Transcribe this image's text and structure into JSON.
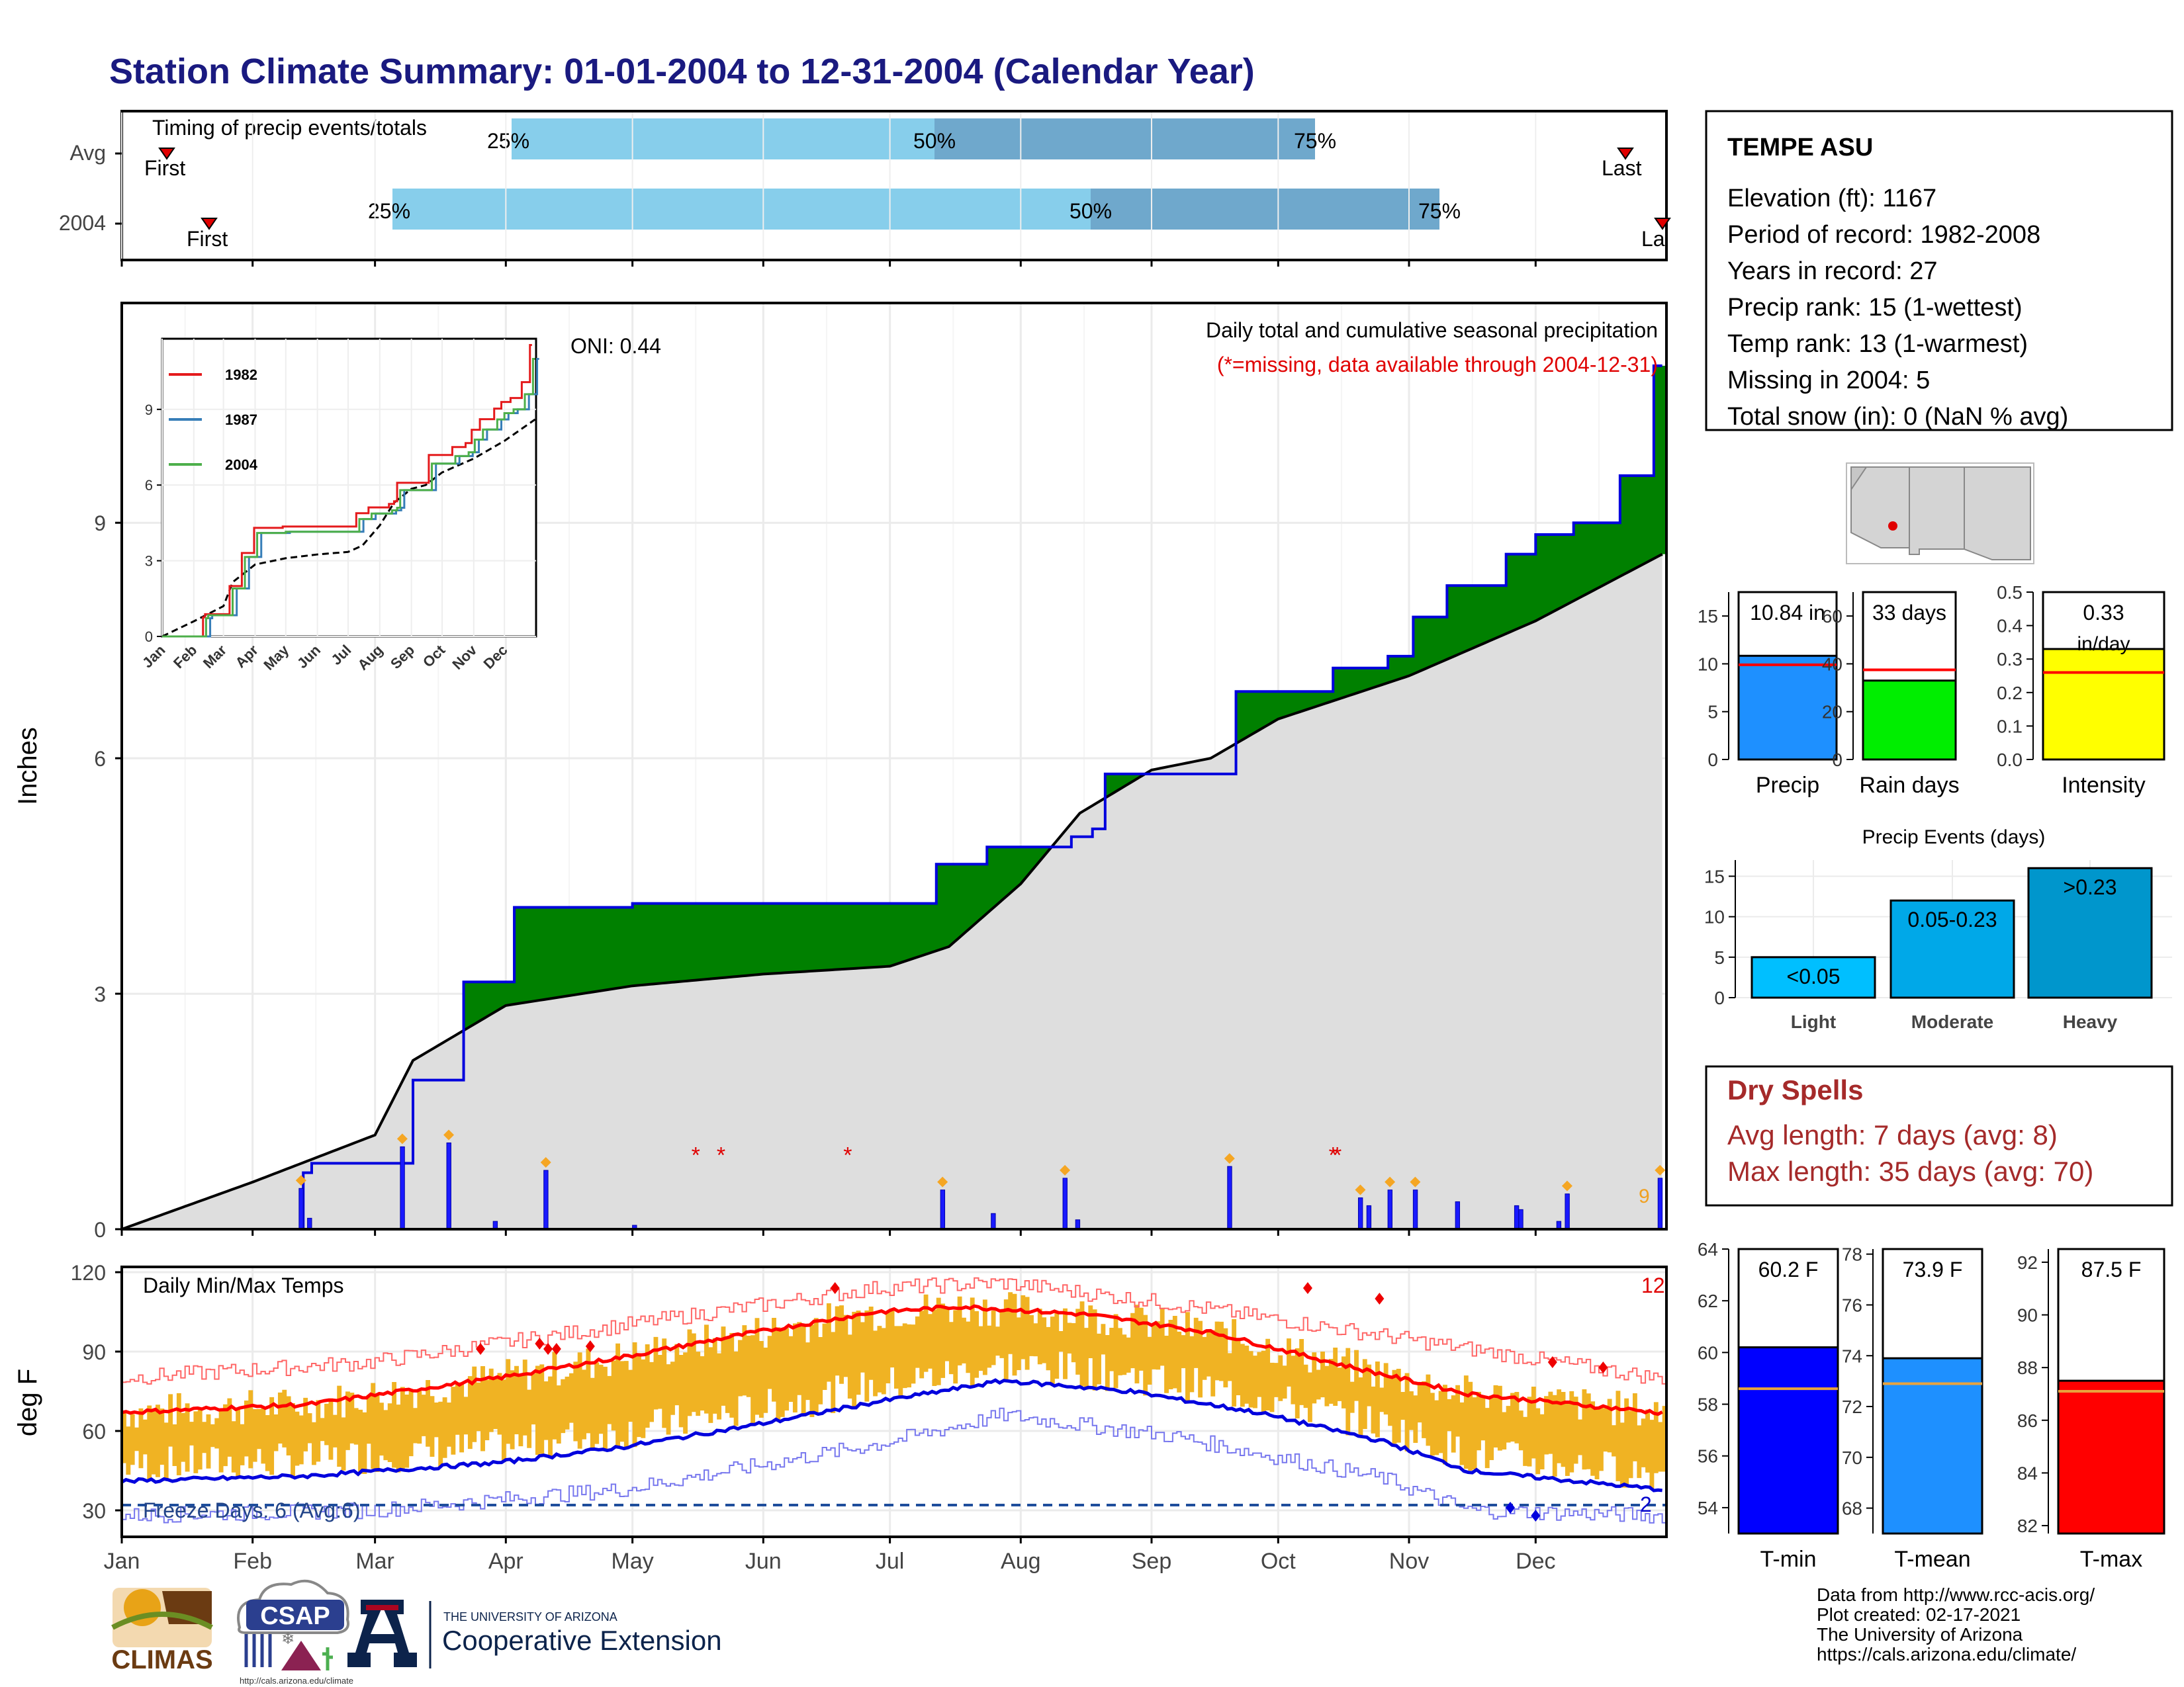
{
  "title": "Station Climate Summary: 01-01-2004 to 12-31-2004 (Calendar Year)",
  "station": {
    "name": "TEMPE ASU",
    "lines": [
      "Elevation (ft): 1167",
      "Period of record: 1982-2008",
      "Years in record: 27",
      "Precip rank: 15 (1-wettest)",
      "Temp rank: 13 (1-warmest)",
      "Missing in 2004: 5",
      "Total snow (in): 0 (NaN % avg)"
    ]
  },
  "timing": {
    "label": "Timing of precip events/totals",
    "rows": [
      {
        "name": "Avg",
        "q25": 0.25,
        "q50": 0.5,
        "q75": 0.75,
        "first_label": "First",
        "last_label": "Last"
      },
      {
        "name": "2004",
        "q25": 0.25,
        "q50": 0.5,
        "q75": 0.75,
        "first_label": "First",
        "last_label": "La"
      }
    ],
    "pct_labels": [
      "25%",
      "50%",
      "75%"
    ]
  },
  "precip_panel": {
    "ylabel": "Inches",
    "oni": "ONI: 0.44",
    "caption": "Daily total and cumulative seasonal precipitation",
    "missing_note": "(*=missing, data available through 2004-12-31)",
    "corner_number": "9",
    "yticks": [
      "0",
      "3",
      "6",
      "9"
    ]
  },
  "inset": {
    "legend": [
      "1982",
      "1987",
      "2004"
    ],
    "colors": [
      "#e41a1c",
      "#377eb8",
      "#4daf4a"
    ],
    "yticks": [
      "0",
      "3",
      "6",
      "9"
    ],
    "xticks": [
      "Jan",
      "Feb",
      "Mar",
      "Apr",
      "May",
      "Jun",
      "Jul",
      "Aug",
      "Sep",
      "Oct",
      "Nov",
      "Dec"
    ]
  },
  "temp_panel": {
    "ylabel": "deg F",
    "title": "Daily Min/Max Temps",
    "freeze": "Freeze Days: 6 (Avg:6)",
    "corner_top": "12",
    "corner_bottom": "2",
    "yticks": [
      "30",
      "60",
      "90",
      "120"
    ],
    "months": [
      "Jan",
      "Feb",
      "Mar",
      "Apr",
      "May",
      "Jun",
      "Jul",
      "Aug",
      "Sep",
      "Oct",
      "Nov",
      "Dec"
    ]
  },
  "bar_precip": {
    "value_label": "10.84 in",
    "xlabel": "Precip",
    "value": 10.84,
    "avg": 9.9,
    "yticks": [
      "0",
      "5",
      "10",
      "15"
    ]
  },
  "bar_raindays": {
    "value_label": "33 days",
    "xlabel": "Rain days",
    "value": 33,
    "avg": 37.5,
    "yticks": [
      "0",
      "20",
      "40",
      "60"
    ]
  },
  "bar_intensity": {
    "value_label": "0.33",
    "unit_label": "in/day",
    "xlabel": "Intensity",
    "value": 0.33,
    "avg": 0.26,
    "yticks": [
      "0.0",
      "0.1",
      "0.2",
      "0.3",
      "0.4",
      "0.5"
    ]
  },
  "events": {
    "title": "Precip Events (days)",
    "categories": [
      "Light",
      "Moderate",
      "Heavy"
    ],
    "labels": [
      "<0.05",
      "0.05-0.23",
      ">0.23"
    ],
    "values": [
      5,
      12,
      16
    ],
    "yticks": [
      "0",
      "5",
      "10",
      "15"
    ]
  },
  "dry_spells": {
    "title": "Dry Spells",
    "avg_line": "Avg length: 7 days (avg: 8)",
    "max_line": "Max length: 35 days (avg: 70)"
  },
  "tmin": {
    "value_label": "60.2 F",
    "xlabel": "T-min",
    "value": 60.2,
    "avg": 58.6,
    "yticks": [
      "54",
      "56",
      "58",
      "60",
      "62",
      "64"
    ]
  },
  "tmean": {
    "value_label": "73.9 F",
    "xlabel": "T-mean",
    "value": 73.9,
    "avg": 72.9,
    "yticks": [
      "68",
      "70",
      "72",
      "74",
      "76",
      "78"
    ]
  },
  "tmax": {
    "value_label": "87.5 F",
    "xlabel": "T-max",
    "value": 87.5,
    "avg": 87.1,
    "yticks": [
      "82",
      "84",
      "86",
      "88",
      "90",
      "92"
    ]
  },
  "footer": {
    "credit": [
      "Data from http://www.rcc-acis.org/",
      "Plot created: 02-17-2021",
      "The University of Arizona",
      "https://cals.arizona.edu/climate/"
    ],
    "climas": "CLIMAS",
    "csap": "CSAP",
    "csap_url": "http://cals.arizona.edu/climate",
    "ua_small": "THE UNIVERSITY OF ARIZONA",
    "ua_big": "Cooperative Extension"
  },
  "chart_data": {
    "type": "area",
    "xlabel": "",
    "ylabel": "Inches",
    "ylim": [
      0,
      11.8
    ],
    "series": [
      {
        "name": "2004",
        "x": [
          "2004-01-01",
          "2004-02-13",
          "2004-02-15",
          "2004-03-10",
          "2004-03-22",
          "2004-04-03",
          "2004-05-01",
          "2004-06-01",
          "2004-07-01",
          "2004-07-12",
          "2004-07-24",
          "2004-08-05",
          "2004-08-13",
          "2004-08-18",
          "2004-08-21",
          "2004-09-13",
          "2004-09-21",
          "2004-10-01",
          "2004-10-14",
          "2004-10-27",
          "2004-11-02",
          "2004-11-10",
          "2004-11-24",
          "2004-12-01",
          "2004-12-10",
          "2004-12-21",
          "2004-12-29",
          "2004-12-31"
        ],
        "y": [
          0.0,
          0.72,
          0.84,
          1.9,
          3.15,
          4.1,
          4.15,
          4.15,
          4.15,
          4.65,
          4.87,
          4.87,
          5.0,
          5.1,
          5.8,
          5.8,
          6.85,
          6.85,
          7.15,
          7.3,
          7.8,
          8.2,
          8.6,
          8.85,
          9.0,
          9.6,
          11.0,
          11.0
        ]
      },
      {
        "name": "Avg",
        "x": [
          "2004-01-01",
          "2004-02-01",
          "2004-03-01",
          "2004-03-10",
          "2004-04-01",
          "2004-05-01",
          "2004-06-01",
          "2004-07-01",
          "2004-07-15",
          "2004-08-01",
          "2004-08-15",
          "2004-09-01",
          "2004-09-15",
          "2004-10-01",
          "2004-11-01",
          "2004-12-01",
          "2004-12-31"
        ],
        "y": [
          0.0,
          0.6,
          1.2,
          2.15,
          2.85,
          3.1,
          3.25,
          3.35,
          3.6,
          4.4,
          5.3,
          5.85,
          6.0,
          6.5,
          7.05,
          7.75,
          8.6
        ]
      }
    ],
    "daily_precip": {
      "x": [
        "2004-02-12",
        "2004-02-14",
        "2004-03-07",
        "2004-03-18",
        "2004-03-29",
        "2004-04-10",
        "2004-05-01",
        "2004-07-13",
        "2004-07-25",
        "2004-08-11",
        "2004-08-14",
        "2004-09-19",
        "2004-10-20",
        "2004-10-22",
        "2004-10-27",
        "2004-11-02",
        "2004-11-12",
        "2004-11-26",
        "2004-11-27",
        "2004-12-06",
        "2004-12-08",
        "2004-12-30"
      ],
      "y": [
        0.52,
        0.14,
        1.05,
        1.1,
        0.1,
        0.75,
        0.05,
        0.5,
        0.2,
        0.65,
        0.12,
        0.8,
        0.4,
        0.3,
        0.5,
        0.5,
        0.35,
        0.3,
        0.25,
        0.1,
        0.45,
        0.65
      ]
    },
    "missing": [
      "2004-05-16",
      "2004-05-22",
      "2004-06-21",
      "2004-10-14",
      "2004-10-15"
    ],
    "temps": {
      "ylim": [
        20,
        122
      ],
      "avg_max": [
        [
          1,
          67
        ],
        [
          45,
          70
        ],
        [
          90,
          80
        ],
        [
          120,
          88
        ],
        [
          150,
          97
        ],
        [
          180,
          105
        ],
        [
          200,
          107
        ],
        [
          230,
          104
        ],
        [
          260,
          97
        ],
        [
          290,
          85
        ],
        [
          320,
          74
        ],
        [
          365,
          67
        ]
      ],
      "avg_min": [
        [
          1,
          41
        ],
        [
          45,
          43
        ],
        [
          90,
          48
        ],
        [
          120,
          54
        ],
        [
          150,
          62
        ],
        [
          180,
          71
        ],
        [
          210,
          79
        ],
        [
          240,
          75
        ],
        [
          270,
          67
        ],
        [
          300,
          56
        ],
        [
          320,
          45
        ],
        [
          365,
          38
        ]
      ],
      "record_max": [
        [
          1,
          80
        ],
        [
          60,
          86
        ],
        [
          120,
          100
        ],
        [
          180,
          114
        ],
        [
          210,
          116
        ],
        [
          250,
          108
        ],
        [
          300,
          96
        ],
        [
          365,
          80
        ]
      ],
      "record_min": [
        [
          1,
          28
        ],
        [
          60,
          30
        ],
        [
          120,
          38
        ],
        [
          180,
          55
        ],
        [
          210,
          66
        ],
        [
          250,
          58
        ],
        [
          300,
          42
        ],
        [
          320,
          30
        ],
        [
          365,
          28
        ]
      ],
      "freeze_line": 32
    }
  }
}
